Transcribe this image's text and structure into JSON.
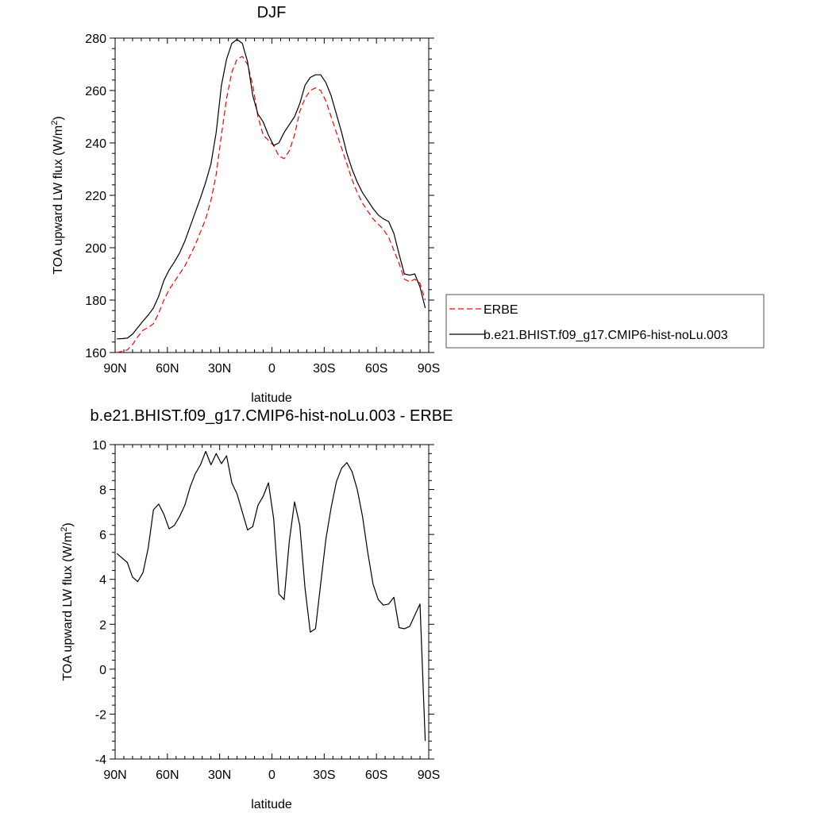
{
  "chart_data": [
    {
      "type": "line",
      "title": "DJF",
      "xlabel": "latitude",
      "ylabel": "TOA upward LW flux (W/m",
      "ylabel_sup": "2",
      "ylabel_close": ")",
      "xlim": [
        90,
        -90
      ],
      "ylim": [
        160,
        280
      ],
      "xticks": [
        90,
        60,
        30,
        0,
        -30,
        -60,
        -90
      ],
      "xtick_labels": [
        "90N",
        "60N",
        "30N",
        "0",
        "30S",
        "60S",
        "90S"
      ],
      "yticks": [
        160,
        180,
        200,
        220,
        240,
        260,
        280
      ],
      "ytick_labels": [
        "160",
        "180",
        "200",
        "220",
        "240",
        "260",
        "280"
      ],
      "legend": "right-middle",
      "series": [
        {
          "name": "ERBE",
          "color": "#ff0000",
          "dash": "dashed",
          "x": [
            89,
            86,
            83,
            80,
            77,
            74,
            71,
            68,
            65,
            62,
            59,
            56,
            53,
            50,
            47,
            44,
            41,
            38,
            35,
            32,
            29,
            26,
            23,
            20,
            17,
            14,
            11,
            8,
            5,
            2,
            -1,
            -4,
            -7,
            -10,
            -13,
            -16,
            -19,
            -22,
            -25,
            -28,
            -31,
            -34,
            -37,
            -40,
            -43,
            -46,
            -49,
            -52,
            -55,
            -58,
            -61,
            -64,
            -67,
            -70,
            -73,
            -76,
            -79,
            -82,
            -85,
            -88
          ],
          "y": [
            160,
            160.5,
            161,
            163,
            166,
            168.5,
            169.5,
            171,
            175,
            180,
            184,
            187,
            190,
            193,
            197,
            201,
            206,
            211,
            218,
            228,
            243,
            257,
            267,
            272,
            273,
            270,
            262,
            250,
            243,
            241,
            239,
            235,
            234,
            237,
            243,
            252,
            257,
            260,
            261,
            260,
            256,
            250,
            244,
            238,
            232,
            226,
            221,
            217,
            214,
            211,
            209,
            207,
            204,
            199,
            194,
            188,
            187,
            188,
            186.5,
            180
          ]
        },
        {
          "name": "b.e21.BHIST.f09_g17.CMIP6-hist-noLu.003",
          "color": "#000000",
          "dash": "solid",
          "x": [
            89,
            86,
            83,
            80,
            77,
            74,
            71,
            68,
            65,
            62,
            59,
            56,
            53,
            50,
            47,
            44,
            41,
            38,
            35,
            32,
            29,
            26,
            23,
            20,
            17,
            14,
            11,
            8,
            5,
            2,
            -1,
            -4,
            -7,
            -10,
            -13,
            -16,
            -19,
            -22,
            -25,
            -28,
            -31,
            -34,
            -37,
            -40,
            -43,
            -46,
            -49,
            -52,
            -55,
            -58,
            -61,
            -64,
            -67,
            -70,
            -73,
            -76,
            -79,
            -82,
            -85,
            -88
          ],
          "y": [
            165.2,
            165.3,
            165.5,
            167,
            169.5,
            172,
            174.3,
            177,
            181.5,
            187.5,
            191.5,
            194.5,
            198,
            202.5,
            208,
            213.5,
            219,
            225,
            232,
            244,
            262,
            272,
            278,
            279.5,
            278,
            271,
            258,
            251,
            248,
            243,
            239,
            240,
            244,
            247,
            250,
            255,
            262,
            265,
            266,
            266,
            263,
            258,
            251,
            244,
            236,
            230,
            225,
            221,
            218,
            215,
            212.5,
            211,
            210,
            205.5,
            197.5,
            190,
            189.5,
            190,
            185,
            177
          ]
        }
      ]
    },
    {
      "type": "line",
      "title": "b.e21.BHIST.f09_g17.CMIP6-hist-noLu.003 - ERBE",
      "xlabel": "latitude",
      "ylabel": "TOA upward LW flux (W/m",
      "ylabel_sup": "2",
      "ylabel_close": ")",
      "xlim": [
        90,
        -90
      ],
      "ylim": [
        -4,
        10
      ],
      "xticks": [
        90,
        60,
        30,
        0,
        -30,
        -60,
        -90
      ],
      "xtick_labels": [
        "90N",
        "60N",
        "30N",
        "0",
        "30S",
        "60S",
        "90S"
      ],
      "yticks": [
        -4,
        -2,
        0,
        2,
        4,
        6,
        8,
        10
      ],
      "ytick_labels": [
        "-4",
        "-2",
        "0",
        "2",
        "4",
        "6",
        "8",
        "10"
      ],
      "series": [
        {
          "color": "#000000",
          "dash": "solid",
          "x": [
            89,
            86,
            83,
            80,
            77,
            74,
            71,
            68,
            65,
            62,
            59,
            56,
            53,
            50,
            47,
            44,
            41,
            38,
            35,
            32,
            29,
            26,
            23,
            20,
            17,
            14,
            11,
            8,
            5,
            2,
            -1,
            -4,
            -7,
            -10,
            -13,
            -16,
            -19,
            -22,
            -25,
            -28,
            -31,
            -34,
            -37,
            -40,
            -43,
            -46,
            -49,
            -52,
            -55,
            -58,
            -61,
            -64,
            -67,
            -70,
            -73,
            -76,
            -79,
            -82,
            -85,
            -88
          ],
          "y": [
            5.15,
            4.95,
            4.75,
            4.1,
            3.9,
            4.3,
            5.4,
            7.1,
            7.35,
            6.9,
            6.25,
            6.4,
            6.8,
            7.3,
            8.1,
            8.7,
            9.1,
            9.7,
            9.1,
            9.6,
            9.15,
            9.5,
            8.3,
            7.8,
            7.0,
            6.2,
            6.35,
            7.3,
            7.7,
            8.3,
            6.7,
            3.35,
            3.1,
            5.7,
            7.45,
            6.4,
            3.6,
            1.65,
            1.8,
            3.8,
            5.8,
            7.2,
            8.35,
            8.95,
            9.2,
            8.8,
            8.0,
            6.8,
            5.2,
            3.8,
            3.1,
            2.85,
            2.9,
            3.2,
            1.85,
            1.8,
            1.9,
            2.4,
            2.9,
            -3.2
          ]
        }
      ]
    }
  ]
}
